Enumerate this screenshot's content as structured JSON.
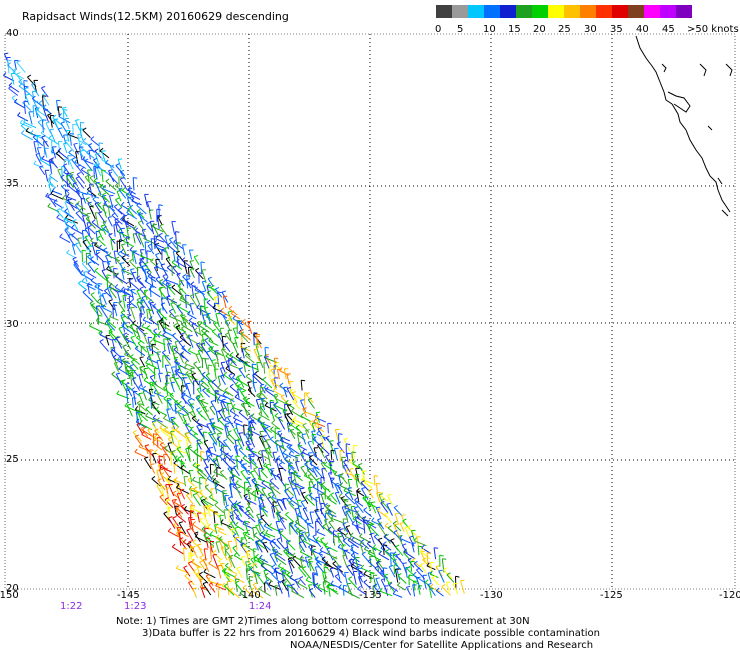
{
  "title": "Rapidsact Winds(12.5KM) 20160629 descending",
  "legend": {
    "colors": [
      "#404040",
      "#9a9a9a",
      "#00c8ff",
      "#0070ff",
      "#1020d0",
      "#20a020",
      "#00d000",
      "#ffff00",
      "#ffc000",
      "#ff8000",
      "#ff3000",
      "#e00000",
      "#804020",
      "#ff00ff",
      "#c000ff",
      "#8000c0"
    ],
    "labels": [
      "0",
      "5",
      "10",
      "15",
      "20",
      "25",
      "30",
      "35",
      "40",
      "45",
      ">50 knots"
    ]
  },
  "axes": {
    "lon_ticks": [
      "-150",
      "-145",
      "-140",
      "-135",
      "-130",
      "-125",
      "-120"
    ],
    "lat_ticks": [
      "40",
      "35",
      "30",
      "25",
      "20"
    ]
  },
  "times": [
    "1:22",
    "1:23",
    "1:24"
  ],
  "notes": [
    "Note: 1) Times are GMT 2)Times along bottom correspond to measurement at 30N",
    "3)Data buffer is 22 hrs from 20160629 4) Black wind barbs indicate possible contamination",
    "NOAA/NESDIS/Center for Satellite Applications and Research"
  ]
}
